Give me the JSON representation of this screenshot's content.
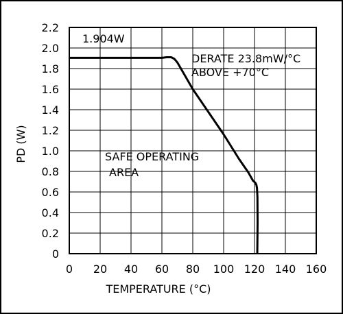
{
  "chart_data": {
    "type": "line",
    "title": "",
    "xlabel": "TEMPERATURE (°C)",
    "ylabel": "PD (W)",
    "xlim": [
      0,
      160
    ],
    "ylim": [
      0,
      2.2
    ],
    "x_ticks": [
      0,
      20,
      40,
      60,
      80,
      100,
      120,
      140,
      160
    ],
    "y_ticks": [
      0,
      0.2,
      0.4,
      0.6,
      0.8,
      1.0,
      1.2,
      1.4,
      1.6,
      1.8,
      2.0,
      2.2
    ],
    "y_tick_labels": [
      "0",
      "0.2",
      "0.4",
      "0.6",
      "0.8",
      "1.0",
      "1.2",
      "1.4",
      "1.6",
      "1.8",
      "2.0",
      "2.2"
    ],
    "grid": true,
    "series": [
      {
        "points": [
          [
            0,
            1.904
          ],
          [
            60,
            1.904
          ],
          [
            63,
            1.91
          ],
          [
            66,
            1.91
          ],
          [
            68,
            1.895
          ],
          [
            70,
            1.86
          ],
          [
            80,
            1.6
          ],
          [
            90,
            1.38
          ],
          [
            100,
            1.16
          ],
          [
            110,
            0.92
          ],
          [
            116,
            0.79
          ],
          [
            119,
            0.71
          ],
          [
            120.5,
            0.69
          ],
          [
            121.2,
            0.67
          ],
          [
            121.6,
            0.64
          ],
          [
            121.9,
            0.55
          ],
          [
            122,
            0.3
          ],
          [
            121.8,
            0
          ]
        ],
        "color": "#000000"
      }
    ],
    "annotations": {
      "pd_max": "1.904W",
      "derate_line1": "DERATE 23.8mW/°C",
      "derate_line2": "ABOVE +70°C",
      "area_line1": "SAFE OPERATING",
      "area_line2": "AREA"
    }
  }
}
